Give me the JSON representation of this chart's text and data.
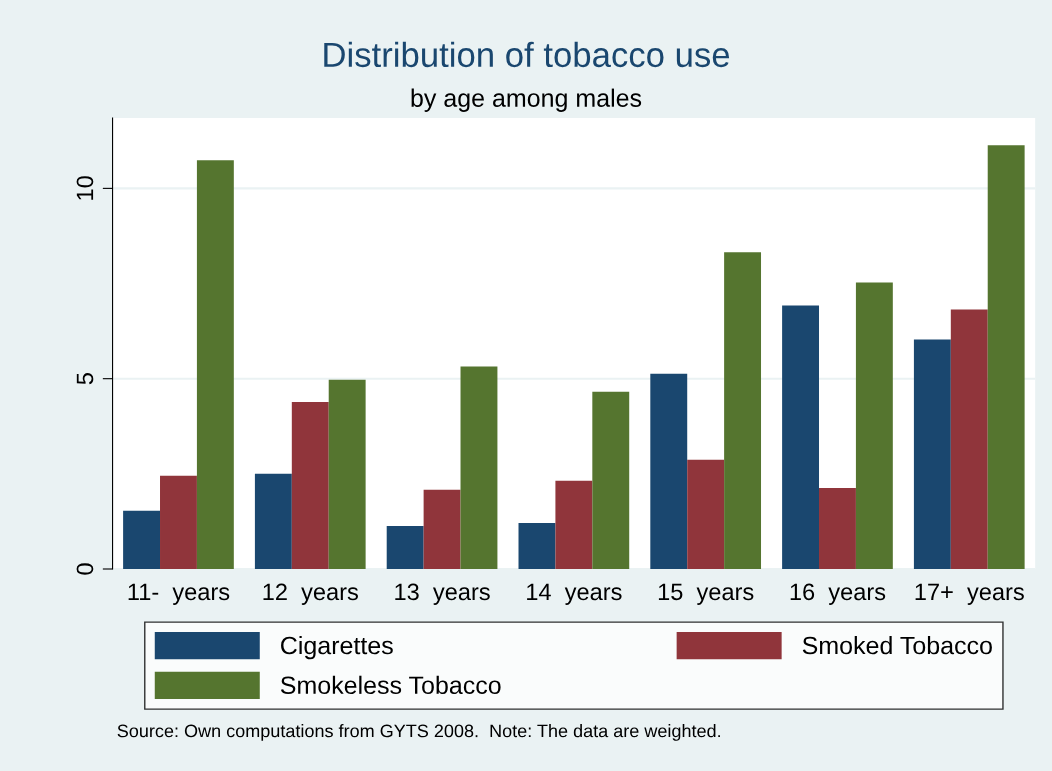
{
  "chart_data": {
    "type": "bar",
    "title": "Distribution of tobacco use",
    "subtitle": "by age among males",
    "categories": [
      "11-  years",
      "12  years",
      "13  years",
      "14  years",
      "15  years",
      "16  years",
      "17+  years"
    ],
    "series": [
      {
        "name": "Cigarettes",
        "color": "#1a476f",
        "values": [
          1.53,
          2.5,
          1.13,
          1.21,
          5.13,
          6.92,
          6.03
        ]
      },
      {
        "name": "Smoked Tobacco",
        "color": "#90353b",
        "values": [
          2.45,
          4.39,
          2.08,
          2.32,
          2.87,
          2.13,
          6.82
        ]
      },
      {
        "name": "Smokeless Tobacco",
        "color": "#55752f",
        "values": [
          10.74,
          4.97,
          5.32,
          4.66,
          8.32,
          7.53,
          11.13
        ]
      }
    ],
    "ylim": [
      0,
      11.85
    ],
    "yticks": [
      0,
      5,
      10
    ],
    "grid": "y",
    "legend": "bottom",
    "annotations": [
      "Source: Own computations from GYTS 2008.  Note: The data are weighted."
    ]
  }
}
